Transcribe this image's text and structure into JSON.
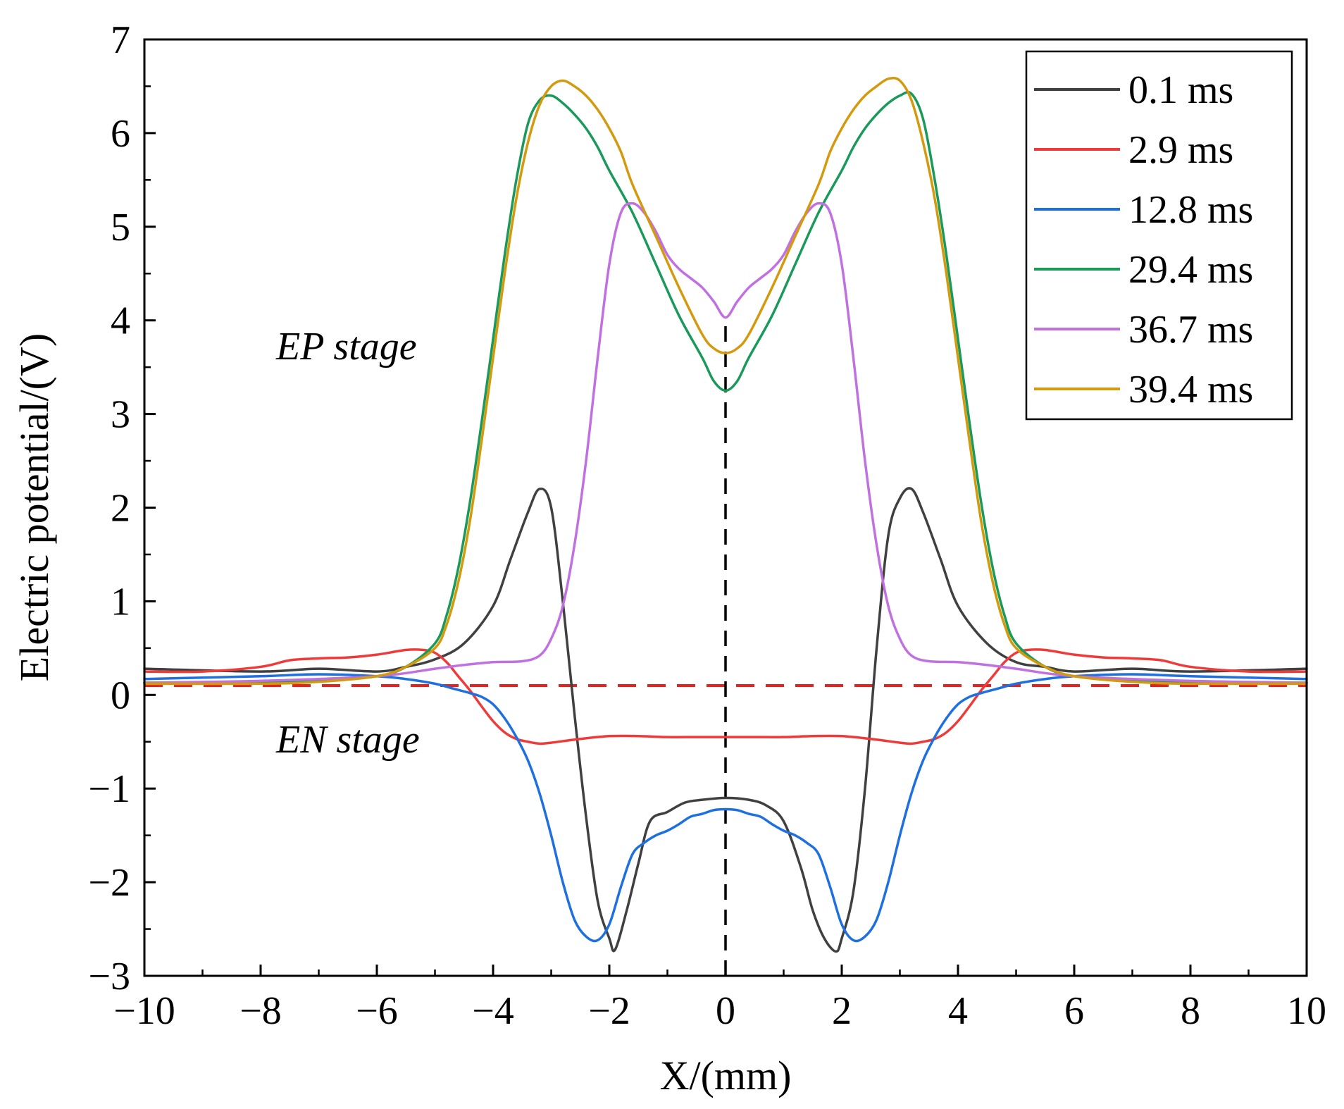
{
  "chart_data": {
    "type": "line",
    "title": "",
    "xlabel": "X/(mm)",
    "ylabel": "Electric potential/(V)",
    "xlim": [
      -10,
      10
    ],
    "ylim": [
      -3,
      7
    ],
    "xticks": [
      -10,
      -8,
      -6,
      -4,
      -2,
      0,
      2,
      4,
      6,
      8,
      10
    ],
    "yticks": [
      -3,
      -2,
      -1,
      0,
      1,
      2,
      3,
      4,
      5,
      6,
      7
    ],
    "xtick_labels": [
      "−10",
      "−8",
      "−6",
      "−4",
      "−2",
      "0",
      "2",
      "4",
      "6",
      "8",
      "10"
    ],
    "ytick_labels": [
      "−3",
      "−2",
      "−1",
      "0",
      "1",
      "2",
      "3",
      "4",
      "5",
      "6",
      "7"
    ],
    "grid": false,
    "legend_position": "top-right",
    "annotations": [
      {
        "text": "EP stage",
        "x": -6.3,
        "y": 3.9
      },
      {
        "text": "EN stage",
        "x": -6.3,
        "y": -0.8
      }
    ],
    "reference_lines": [
      {
        "orientation": "horizontal",
        "value": 0.1,
        "color": "#e8211f",
        "style": "dashed"
      },
      {
        "orientation": "vertical",
        "value": 0,
        "from": -3,
        "to": 4.0,
        "color": "#000000",
        "style": "dashed"
      }
    ],
    "series": [
      {
        "name": "0.1 ms",
        "color": "#404040",
        "x": [
          -10,
          -8,
          -7,
          -6,
          -5.5,
          -5,
          -4.5,
          -4,
          -3.7,
          -3.4,
          -3.2,
          -3.0,
          -2.8,
          -2.6,
          -2.4,
          -2.2,
          -2.0,
          -1.9,
          -1.7,
          -1.5,
          -1.3,
          -1.0,
          -0.7,
          -0.4,
          0,
          0.4,
          0.7,
          1.0,
          1.3,
          1.5,
          1.7,
          1.9,
          2.0,
          2.2,
          2.4,
          2.6,
          2.8,
          3.0,
          3.2,
          3.4,
          3.7,
          4.0,
          4.5,
          5.0,
          5.5,
          6,
          7,
          8,
          10
        ],
        "y": [
          0.28,
          0.25,
          0.28,
          0.25,
          0.3,
          0.38,
          0.55,
          0.95,
          1.45,
          1.95,
          2.2,
          2.0,
          1.0,
          -0.2,
          -1.3,
          -2.2,
          -2.6,
          -2.72,
          -2.3,
          -1.8,
          -1.35,
          -1.25,
          -1.15,
          -1.12,
          -1.1,
          -1.12,
          -1.18,
          -1.35,
          -1.85,
          -2.3,
          -2.6,
          -2.74,
          -2.6,
          -2.1,
          -1.0,
          0.5,
          1.7,
          2.1,
          2.2,
          1.95,
          1.45,
          0.95,
          0.55,
          0.35,
          0.3,
          0.25,
          0.28,
          0.25,
          0.28
        ]
      },
      {
        "name": "2.9 ms",
        "color": "#f03a3a",
        "x": [
          -10,
          -9,
          -8,
          -7.5,
          -7,
          -6.5,
          -6,
          -5.5,
          -5.2,
          -5.0,
          -4.8,
          -4.6,
          -4.4,
          -4.2,
          -4.0,
          -3.8,
          -3.6,
          -3.4,
          -3.2,
          -3.0,
          -2.5,
          -2.0,
          -1.5,
          -1.0,
          -0.5,
          0,
          0.5,
          1.0,
          1.5,
          2.0,
          2.5,
          3.0,
          3.2,
          3.4,
          3.6,
          3.8,
          4.0,
          4.2,
          4.4,
          4.6,
          4.8,
          5.0,
          5.2,
          5.5,
          6,
          6.5,
          7,
          7.5,
          8,
          9,
          10
        ],
        "y": [
          0.25,
          0.25,
          0.3,
          0.37,
          0.39,
          0.4,
          0.43,
          0.48,
          0.48,
          0.45,
          0.35,
          0.2,
          0.05,
          -0.12,
          -0.28,
          -0.4,
          -0.47,
          -0.5,
          -0.52,
          -0.51,
          -0.47,
          -0.44,
          -0.44,
          -0.45,
          -0.45,
          -0.45,
          -0.45,
          -0.45,
          -0.44,
          -0.44,
          -0.47,
          -0.51,
          -0.52,
          -0.5,
          -0.47,
          -0.4,
          -0.28,
          -0.12,
          0.05,
          0.2,
          0.35,
          0.45,
          0.48,
          0.48,
          0.43,
          0.4,
          0.39,
          0.37,
          0.3,
          0.25,
          0.25
        ]
      },
      {
        "name": "12.8 ms",
        "color": "#1e6fe0",
        "x": [
          -10,
          -8,
          -7,
          -6,
          -5.5,
          -5.0,
          -4.7,
          -4.4,
          -4.2,
          -4.0,
          -3.8,
          -3.6,
          -3.4,
          -3.2,
          -3.0,
          -2.8,
          -2.6,
          -2.4,
          -2.2,
          -2.0,
          -1.8,
          -1.6,
          -1.4,
          -1.2,
          -1.0,
          -0.8,
          -0.6,
          -0.4,
          -0.2,
          0,
          0.2,
          0.4,
          0.6,
          0.8,
          1.0,
          1.2,
          1.4,
          1.6,
          1.8,
          2.0,
          2.2,
          2.4,
          2.6,
          2.8,
          3.0,
          3.2,
          3.4,
          3.6,
          3.8,
          4.0,
          4.2,
          4.4,
          4.7,
          5.0,
          5.5,
          6,
          7,
          8,
          10
        ],
        "y": [
          0.17,
          0.2,
          0.22,
          0.2,
          0.17,
          0.12,
          0.07,
          0.02,
          -0.02,
          -0.1,
          -0.25,
          -0.45,
          -0.7,
          -1.05,
          -1.5,
          -2.0,
          -2.4,
          -2.58,
          -2.62,
          -2.45,
          -2.05,
          -1.7,
          -1.58,
          -1.5,
          -1.45,
          -1.38,
          -1.3,
          -1.27,
          -1.23,
          -1.22,
          -1.23,
          -1.27,
          -1.3,
          -1.38,
          -1.45,
          -1.5,
          -1.58,
          -1.7,
          -2.05,
          -2.45,
          -2.62,
          -2.58,
          -2.4,
          -2.0,
          -1.5,
          -1.05,
          -0.7,
          -0.45,
          -0.25,
          -0.1,
          -0.02,
          0.02,
          0.07,
          0.12,
          0.17,
          0.2,
          0.22,
          0.2,
          0.17
        ]
      },
      {
        "name": "29.4 ms",
        "color": "#1a9a5a",
        "x": [
          -10,
          -8,
          -7,
          -6,
          -5.5,
          -5.0,
          -4.8,
          -4.6,
          -4.4,
          -4.2,
          -4.0,
          -3.8,
          -3.6,
          -3.4,
          -3.2,
          -3.0,
          -2.8,
          -2.6,
          -2.4,
          -2.2,
          -2.0,
          -1.6,
          -1.2,
          -0.8,
          -0.4,
          -0.2,
          0,
          0.2,
          0.4,
          0.8,
          1.2,
          1.6,
          2.0,
          2.2,
          2.4,
          2.6,
          2.8,
          3.0,
          3.2,
          3.4,
          3.6,
          3.8,
          4.0,
          4.2,
          4.4,
          4.6,
          4.8,
          5.0,
          5.5,
          6,
          7,
          8,
          10
        ],
        "y": [
          0.13,
          0.13,
          0.15,
          0.2,
          0.3,
          0.55,
          0.85,
          1.35,
          2.05,
          2.9,
          3.8,
          4.7,
          5.5,
          6.1,
          6.35,
          6.4,
          6.32,
          6.2,
          6.05,
          5.85,
          5.6,
          5.15,
          4.6,
          4.05,
          3.6,
          3.35,
          3.25,
          3.35,
          3.6,
          4.05,
          4.6,
          5.15,
          5.6,
          5.85,
          6.05,
          6.2,
          6.32,
          6.4,
          6.42,
          6.15,
          5.5,
          4.7,
          3.8,
          2.9,
          2.05,
          1.35,
          0.85,
          0.55,
          0.3,
          0.2,
          0.15,
          0.13,
          0.13
        ]
      },
      {
        "name": "36.7 ms",
        "color": "#c070e0",
        "x": [
          -10,
          -8,
          -6,
          -5,
          -4.5,
          -4,
          -3.5,
          -3.2,
          -3.0,
          -2.8,
          -2.6,
          -2.4,
          -2.2,
          -2.0,
          -1.8,
          -1.6,
          -1.4,
          -1.2,
          -1.0,
          -0.8,
          -0.6,
          -0.4,
          -0.2,
          0,
          0.2,
          0.4,
          0.6,
          0.8,
          1.0,
          1.2,
          1.4,
          1.6,
          1.8,
          2.0,
          2.2,
          2.4,
          2.6,
          2.8,
          3.0,
          3.2,
          3.5,
          4,
          4.5,
          5,
          6,
          8,
          10
        ],
        "y": [
          0.13,
          0.15,
          0.2,
          0.28,
          0.32,
          0.35,
          0.36,
          0.42,
          0.6,
          0.95,
          1.6,
          2.5,
          3.6,
          4.6,
          5.15,
          5.25,
          5.15,
          4.95,
          4.7,
          4.55,
          4.45,
          4.35,
          4.2,
          4.03,
          4.2,
          4.35,
          4.45,
          4.55,
          4.7,
          4.95,
          5.15,
          5.25,
          5.15,
          4.6,
          3.6,
          2.5,
          1.6,
          0.95,
          0.6,
          0.42,
          0.36,
          0.35,
          0.32,
          0.28,
          0.2,
          0.15,
          0.13
        ]
      },
      {
        "name": "39.4 ms",
        "color": "#d49a0e",
        "x": [
          -10,
          -8,
          -7,
          -6,
          -5.5,
          -5.0,
          -4.8,
          -4.6,
          -4.4,
          -4.2,
          -4.0,
          -3.8,
          -3.6,
          -3.4,
          -3.2,
          -3.0,
          -2.8,
          -2.6,
          -2.4,
          -2.2,
          -2.0,
          -1.8,
          -1.6,
          -1.2,
          -0.8,
          -0.4,
          -0.2,
          0,
          0.2,
          0.4,
          0.8,
          1.2,
          1.6,
          1.8,
          2.0,
          2.2,
          2.4,
          2.6,
          2.8,
          3.0,
          3.2,
          3.4,
          3.6,
          3.8,
          4.0,
          4.2,
          4.4,
          4.6,
          4.8,
          5.0,
          5.5,
          6,
          7,
          8,
          10
        ],
        "y": [
          0.12,
          0.12,
          0.14,
          0.2,
          0.3,
          0.5,
          0.75,
          1.2,
          1.85,
          2.7,
          3.6,
          4.5,
          5.3,
          5.9,
          6.3,
          6.5,
          6.56,
          6.5,
          6.4,
          6.25,
          6.05,
          5.8,
          5.45,
          4.9,
          4.35,
          3.85,
          3.7,
          3.65,
          3.7,
          3.85,
          4.35,
          4.9,
          5.45,
          5.8,
          6.05,
          6.25,
          6.4,
          6.5,
          6.58,
          6.56,
          6.35,
          5.9,
          5.3,
          4.5,
          3.6,
          2.7,
          1.85,
          1.2,
          0.75,
          0.5,
          0.3,
          0.2,
          0.14,
          0.12,
          0.12
        ]
      }
    ]
  }
}
